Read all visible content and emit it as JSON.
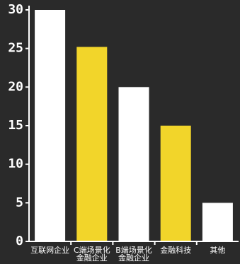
{
  "chart_data": {
    "type": "bar",
    "title": "",
    "xlabel": "",
    "ylabel": "",
    "ylim": [
      0,
      30
    ],
    "yticks": [
      "0",
      "5",
      "10",
      "15",
      "20",
      "25",
      "30"
    ],
    "grid": false,
    "categories": [
      [
        "互联网企业"
      ],
      [
        "C端场景化",
        "金融企业"
      ],
      [
        "B端场景化",
        "金融企业"
      ],
      [
        "金融科技"
      ],
      [
        "其他"
      ]
    ],
    "values": [
      30,
      25.2,
      20,
      15,
      5
    ],
    "bar_colors": [
      "#ffffff",
      "#f2d52a",
      "#ffffff",
      "#f2d52a",
      "#ffffff"
    ]
  },
  "colors": {
    "background": "#2a2a2a",
    "axis": "#ffffff",
    "text": "#ffffff",
    "accent_yellow": "#f2d52a",
    "bar_white": "#ffffff"
  }
}
